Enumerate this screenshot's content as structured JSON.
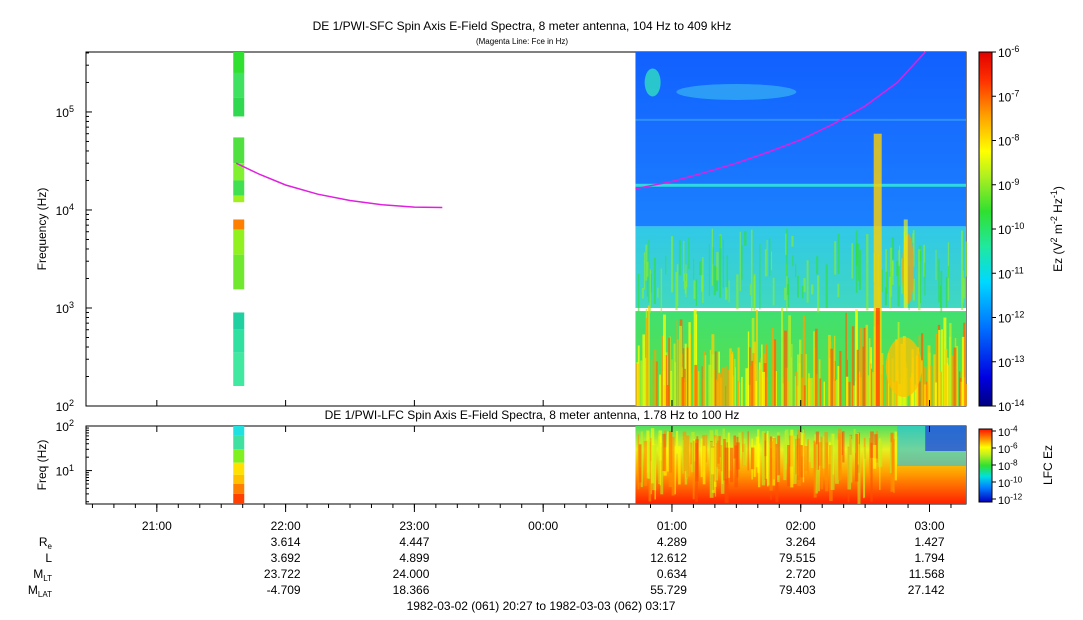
{
  "chart_data": [
    {
      "type": "heatmap",
      "title": "DE 1/PWI-SFC  Spin Axis E-Field Spectra, 8 meter antenna, 104 Hz to 409 kHz",
      "subtitle": "(Magenta Line: Fce in Hz)",
      "ylabel": "Frequency (Hz)",
      "y_scale": "log",
      "ylim": [
        100,
        409000
      ],
      "y_ticks": [
        {
          "label": "10",
          "exp": "2",
          "value": 100
        },
        {
          "label": "10",
          "exp": "3",
          "value": 1000
        },
        {
          "label": "10",
          "exp": "4",
          "value": 10000
        },
        {
          "label": "10",
          "exp": "5",
          "value": 100000
        }
      ],
      "colorbar": {
        "label_prefix": "Ez (V",
        "label_exp1": "2",
        "label_mid": " m",
        "label_exp2": "-2",
        "label_mid2": " Hz",
        "label_exp3": "-1",
        "label_suffix": ")",
        "scale": "log",
        "range": [
          1e-14,
          1e-06
        ],
        "ticks": [
          {
            "label": "10",
            "exp": "-6"
          },
          {
            "label": "10",
            "exp": "-7"
          },
          {
            "label": "10",
            "exp": "-8"
          },
          {
            "label": "10",
            "exp": "-9"
          },
          {
            "label": "10",
            "exp": "-10"
          },
          {
            "label": "10",
            "exp": "-11"
          },
          {
            "label": "10",
            "exp": "-12"
          },
          {
            "label": "10",
            "exp": "-13"
          },
          {
            "label": "10",
            "exp": "-14"
          }
        ]
      },
      "fce_line": {
        "color": "#e020e0",
        "segment1": {
          "x": [
            "21:37",
            "21:48",
            "22:00",
            "22:15",
            "22:30",
            "22:45",
            "23:00",
            "23:13"
          ],
          "y": [
            30000,
            23000,
            18000,
            14500,
            12500,
            11300,
            10700,
            10600
          ]
        },
        "segment2": {
          "x": [
            "00:43",
            "01:00",
            "01:15",
            "01:30",
            "01:45",
            "02:00",
            "02:15",
            "02:30",
            "02:45",
            "02:58"
          ],
          "y": [
            16500,
            19500,
            24000,
            30000,
            39000,
            52000,
            75000,
            115000,
            200000,
            409000
          ]
        }
      }
    },
    {
      "type": "heatmap",
      "title": "DE 1/PWI-LFC  Spin Axis E-Field Spectra, 8 meter antenna, 1.78 Hz to 100 Hz",
      "ylabel": "Freq (Hz)",
      "y_scale": "log",
      "ylim": [
        1.78,
        100
      ],
      "y_ticks": [
        {
          "label": "10",
          "exp": "1",
          "value": 10
        },
        {
          "label": "10",
          "exp": "2",
          "value": 100
        }
      ],
      "colorbar": {
        "label": "LFC Ez",
        "scale": "log",
        "range": [
          1e-12,
          0.0001
        ],
        "ticks": [
          {
            "label": "10",
            "exp": "-4"
          },
          {
            "label": "10",
            "exp": "-6"
          },
          {
            "label": "10",
            "exp": "-8"
          },
          {
            "label": "10",
            "exp": "-10"
          },
          {
            "label": "10",
            "exp": "-12"
          }
        ]
      }
    }
  ],
  "time_axis": {
    "ticks": [
      "21:00",
      "22:00",
      "23:00",
      "00:00",
      "01:00",
      "02:00",
      "03:00"
    ],
    "range_label": "1982-03-02 (061) 20:27 to 1982-03-03 (062) 03:17"
  },
  "ephemeris": {
    "rows": [
      {
        "label": "R",
        "sub": "e",
        "values": [
          "3.614",
          "4.447",
          "",
          "4.289",
          "3.264",
          "1.427"
        ]
      },
      {
        "label": "L",
        "sub": "",
        "values": [
          "3.692",
          "4.899",
          "",
          "12.612",
          "79.515",
          "1.794"
        ]
      },
      {
        "label": "M",
        "sub": "LT",
        "values": [
          "23.722",
          "24.000",
          "",
          "0.634",
          "2.720",
          "11.568"
        ]
      },
      {
        "label": "M",
        "sub": "LAT",
        "values": [
          "-4.709",
          "18.366",
          "",
          "55.729",
          "79.403",
          "27.142"
        ]
      }
    ]
  }
}
